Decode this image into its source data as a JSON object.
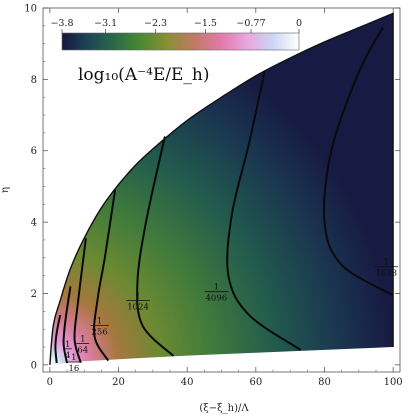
{
  "chart_data": {
    "type": "heatmap",
    "xlabel": "(ξ−ξ_h)/Λ",
    "ylabel": "η",
    "xlim": [
      -2,
      102
    ],
    "ylim": [
      -0.2,
      10
    ],
    "xticks": [
      "0",
      "20",
      "40",
      "60",
      "80",
      "100"
    ],
    "yticks": [
      "0",
      "2",
      "4",
      "6",
      "8",
      "10"
    ],
    "colorbar": {
      "title": "log₁₀(A⁻⁴E/E_h)",
      "ticks": [
        "−3.8",
        "−3.1",
        "−2.3",
        "−1.5",
        "−0.77",
        "0"
      ],
      "range": [
        -3.8,
        0
      ],
      "colors": [
        "#16163f",
        "#1c4658",
        "#2a6a46",
        "#4b8a33",
        "#8a8f34",
        "#c07a63",
        "#e07aa8",
        "#e8a4de",
        "#ccd6f4",
        "#ffffff"
      ]
    },
    "boundary": {
      "outer": [
        [
          0,
          0
        ],
        [
          1,
          1.1
        ],
        [
          3,
          1.8
        ],
        [
          6,
          2.7
        ],
        [
          10,
          3.55
        ],
        [
          15,
          4.4
        ],
        [
          20,
          5.05
        ],
        [
          25,
          5.6
        ],
        [
          30,
          6.05
        ],
        [
          40,
          6.85
        ],
        [
          50,
          7.5
        ],
        [
          60,
          8.1
        ],
        [
          70,
          8.6
        ],
        [
          80,
          9.05
        ],
        [
          90,
          9.45
        ],
        [
          100,
          9.85
        ]
      ],
      "inner_bottom": [
        [
          100,
          0.5
        ],
        [
          80,
          0.42
        ],
        [
          60,
          0.34
        ],
        [
          40,
          0.26
        ],
        [
          20,
          0.16
        ],
        [
          10,
          0.1
        ],
        [
          5,
          0.06
        ],
        [
          0,
          0
        ]
      ]
    },
    "contours": [
      {
        "points": [
          [
            2,
            0.05
          ],
          [
            1.6,
            0.5
          ],
          [
            2,
            0.9
          ],
          [
            3,
            1.4
          ]
        ]
      },
      {
        "points": [
          [
            5,
            0.05
          ],
          [
            4.0,
            0.6
          ],
          [
            4.6,
            1.3
          ],
          [
            6,
            2.2
          ]
        ]
      },
      {
        "points": [
          [
            9,
            0.06
          ],
          [
            7.2,
            0.7
          ],
          [
            8,
            1.6
          ],
          [
            10.5,
            3.55
          ]
        ]
      },
      {
        "points": [
          [
            17,
            0.12
          ],
          [
            13,
            0.8
          ],
          [
            14,
            1.9
          ],
          [
            16,
            3.0
          ],
          [
            19,
            4.9
          ]
        ]
      },
      {
        "points": [
          [
            36,
            0.25
          ],
          [
            27,
            1.1
          ],
          [
            25.5,
            2.3
          ],
          [
            28,
            4.0
          ],
          [
            33.5,
            6.4
          ]
        ]
      },
      {
        "points": [
          [
            73,
            0.42
          ],
          [
            58,
            1.4
          ],
          [
            52,
            2.5
          ],
          [
            53,
            4.2
          ],
          [
            58,
            6.2
          ],
          [
            62.5,
            8.2
          ]
        ]
      },
      {
        "points": [
          [
            100,
            1.95
          ],
          [
            85,
            2.8
          ],
          [
            80,
            4.0
          ],
          [
            82,
            6.0
          ],
          [
            90,
            8.2
          ],
          [
            97,
            9.45
          ]
        ]
      }
    ],
    "contour_labels": [
      {
        "num": "1",
        "den": "4",
        "x": 5.2,
        "y": 0.45
      },
      {
        "num": "1",
        "den": "16",
        "x": 7.0,
        "y": 0.08
      },
      {
        "num": "1",
        "den": "64",
        "x": 9.6,
        "y": 0.6
      },
      {
        "num": "1",
        "den": "256",
        "x": 14.5,
        "y": 1.1
      },
      {
        "num": "1",
        "den": "1024",
        "x": 25.7,
        "y": 1.8
      },
      {
        "num": "1",
        "den": "4096",
        "x": 48.5,
        "y": 2.05
      },
      {
        "num": "1",
        "den": "1638",
        "x": 98,
        "y": 2.75
      }
    ]
  }
}
